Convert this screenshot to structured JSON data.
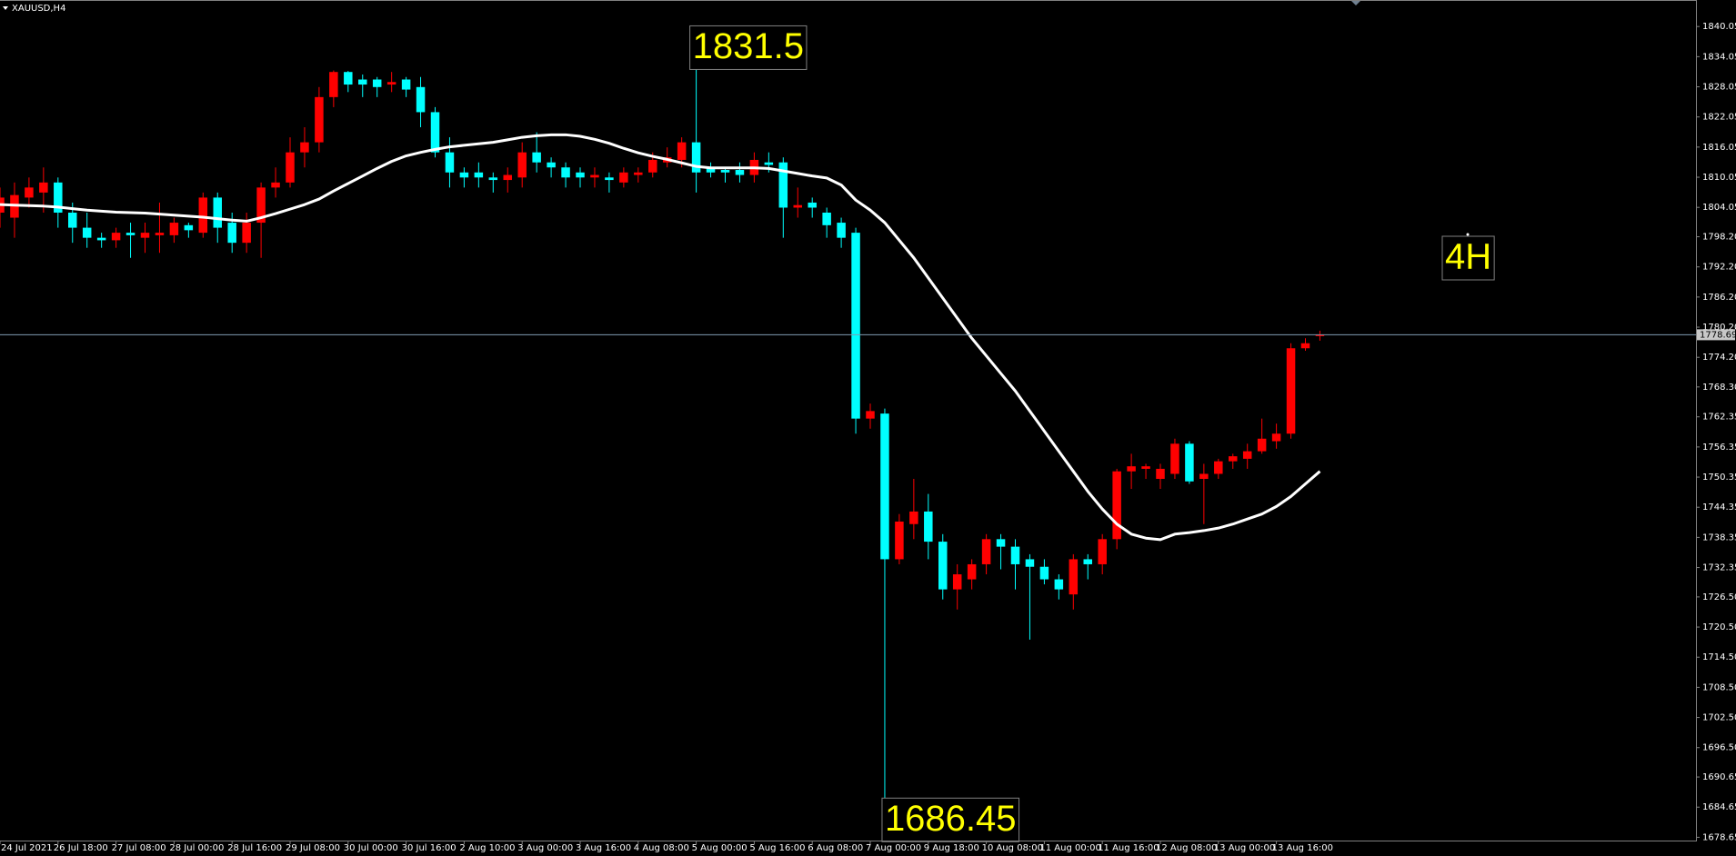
{
  "chart_data": {
    "type": "candlestick",
    "title": "XAUUSD,H4",
    "timeframe_label": "4H",
    "high_label": 1831.5,
    "low_label": 1686.45,
    "current_price": 1778.69,
    "up_color": "#ff0000",
    "down_color": "#00ffff",
    "current_price_color": "#7f9bb3",
    "ylim": [
      1678.0,
      1845.33
    ],
    "yticks": [
      1840.05,
      1834.05,
      1828.05,
      1822.05,
      1816.05,
      1810.05,
      1804.05,
      {
        "value": 1798.2,
        "label": "1798.20"
      },
      {
        "value": 1792.2,
        "label": "1792.20"
      },
      {
        "value": 1786.2,
        "label": "1786.20"
      },
      {
        "value": 1780.2,
        "label": "1780.20"
      },
      {
        "value": 1774.2,
        "label": "1774.20"
      },
      {
        "value": 1768.3,
        "label": "1768.30"
      },
      1762.35,
      1756.35,
      1750.35,
      1744.35,
      1738.35,
      1732.35,
      {
        "value": 1726.5,
        "label": "1726.50"
      },
      {
        "value": 1720.5,
        "label": "1720.50"
      },
      {
        "value": 1714.5,
        "label": "1714.50"
      },
      {
        "value": 1708.5,
        "label": "1708.50"
      },
      {
        "value": 1702.5,
        "label": "1702.50"
      },
      {
        "value": 1696.5,
        "label": "1696.50"
      },
      1690.65,
      1684.65,
      1678.65
    ],
    "categories": [
      "24 Jul 2021",
      null,
      null,
      null,
      "26 Jul 18:00",
      null,
      null,
      null,
      "27 Jul 08:00",
      null,
      null,
      null,
      "28 Jul 00:00",
      null,
      null,
      null,
      "28 Jul 16:00",
      null,
      null,
      null,
      "29 Jul 08:00",
      null,
      null,
      null,
      "30 Jul 00:00",
      null,
      null,
      null,
      "30 Jul 16:00",
      null,
      null,
      null,
      "2 Aug 10:00",
      null,
      null,
      null,
      "3 Aug 00:00",
      null,
      null,
      null,
      "3 Aug 16:00",
      null,
      null,
      null,
      "4 Aug 08:00",
      null,
      null,
      null,
      "5 Aug 00:00",
      null,
      null,
      null,
      "5 Aug 16:00",
      null,
      null,
      null,
      "6 Aug 08:00",
      null,
      null,
      null,
      "7 Aug 00:00",
      null,
      null,
      null,
      "9 Aug 18:00",
      null,
      null,
      null,
      "10 Aug 08:00",
      null,
      null,
      null,
      "11 Aug 00:00",
      null,
      null,
      null,
      "11 Aug 16:00",
      null,
      null,
      null,
      "12 Aug 08:00",
      null,
      null,
      null,
      "13 Aug 00:00",
      null,
      null,
      null,
      "13 Aug 16:00",
      null,
      null,
      null
    ],
    "open": [
      1803,
      1802,
      1806,
      1807,
      1809,
      1803,
      1800,
      1798,
      1797.5,
      1799,
      1798,
      1798.5,
      1798.5,
      1800.5,
      1799,
      1806,
      1801,
      1797,
      1801,
      1808,
      1809,
      1815,
      1817,
      1826,
      1831,
      1829.5,
      1829.5,
      1828.5,
      1829.5,
      1828,
      1823,
      1815,
      1811,
      1811,
      1810,
      1809.5,
      1810,
      1815,
      1813,
      1812,
      1811,
      1810,
      1810,
      1809,
      1810.5,
      1811,
      1813,
      1813.5,
      1817,
      1812,
      1811.5,
      1811.5,
      1810.5,
      1813,
      1813,
      1804,
      1805,
      1803,
      1801,
      1799,
      1762,
      1763,
      1734,
      1741,
      1743.5,
      1737.5,
      1728,
      1730,
      1733,
      1738,
      1736.5,
      1734,
      1732.5,
      1730,
      1727,
      1734,
      1733,
      1738,
      1751.5,
      1752,
      1750,
      1751,
      1757,
      1750,
      1751,
      1753.5,
      1754,
      1755.5,
      1757.5,
      1759,
      1776,
      1778.5
    ],
    "high": [
      1808,
      1809,
      1810,
      1812,
      1810,
      1805,
      1803,
      1799,
      1800,
      1801,
      1801,
      1805,
      1802,
      1801,
      1807,
      1807,
      1803,
      1803,
      1809,
      1812,
      1818,
      1820,
      1828,
      1831.3,
      1831.2,
      1830.5,
      1830,
      1831,
      1830,
      1830,
      1824,
      1818,
      1812,
      1813,
      1811,
      1812,
      1817,
      1819,
      1814,
      1813,
      1812,
      1812,
      1811,
      1812,
      1812,
      1815,
      1816,
      1818,
      1831.5,
      1813,
      1812,
      1813,
      1815,
      1815,
      1814,
      1808,
      1806,
      1804,
      1802,
      1800,
      1765,
      1764,
      1743,
      1750,
      1747,
      1739,
      1733,
      1734,
      1739,
      1739,
      1738,
      1735,
      1734,
      1731,
      1735,
      1735,
      1739,
      1752,
      1755,
      1753,
      1753,
      1758,
      1757.5,
      1753,
      1754,
      1755,
      1757,
      1762,
      1761,
      1777,
      1778,
      1779.5
    ],
    "low": [
      1800,
      1798,
      1804,
      1803,
      1800,
      1797,
      1796,
      1796,
      1796,
      1794,
      1795,
      1795,
      1797,
      1798,
      1798,
      1797,
      1795,
      1795,
      1794,
      1806,
      1808,
      1812,
      1815,
      1824,
      1827,
      1826,
      1826,
      1827,
      1826,
      1820,
      1814,
      1808,
      1808,
      1808,
      1807,
      1807,
      1808,
      1811,
      1810,
      1808,
      1808,
      1808,
      1807,
      1808,
      1809,
      1810,
      1812,
      1812,
      1807,
      1810,
      1809,
      1809,
      1809,
      1811,
      1798,
      1802,
      1802,
      1798,
      1796,
      1759,
      1760,
      1686.45,
      1733,
      1738,
      1734,
      1726,
      1724,
      1728,
      1731,
      1732,
      1728,
      1718,
      1729,
      1726,
      1724,
      1730,
      1731,
      1736,
      1748,
      1750,
      1748,
      1750,
      1749,
      1741,
      1750,
      1752,
      1752,
      1755,
      1756,
      1758,
      1775.5,
      1777.5
    ],
    "close": [
      1806,
      1806.5,
      1808,
      1809,
      1803,
      1800,
      1798,
      1797.5,
      1799,
      1798.5,
      1799,
      1799,
      1801,
      1799.5,
      1806,
      1800,
      1797,
      1801,
      1808,
      1809,
      1815,
      1817,
      1826,
      1831,
      1828.5,
      1828.5,
      1828,
      1829,
      1827.5,
      1823,
      1815,
      1811,
      1810,
      1810,
      1809.5,
      1810.5,
      1815,
      1813,
      1812,
      1810,
      1810,
      1810.5,
      1809.5,
      1811,
      1811,
      1813.5,
      1814,
      1817,
      1811,
      1811,
      1811,
      1810.5,
      1813.5,
      1812.5,
      1804,
      1804.5,
      1804,
      1800.5,
      1798,
      1762,
      1763.5,
      1734,
      1741.5,
      1743.5,
      1737.5,
      1728,
      1731,
      1733,
      1738,
      1736.5,
      1733,
      1732.5,
      1730,
      1728,
      1734,
      1733,
      1738,
      1751.5,
      1752.5,
      1752.5,
      1752,
      1757,
      1749.5,
      1751,
      1753.5,
      1754.5,
      1755.5,
      1758,
      1759,
      1776,
      1777,
      1778.69
    ],
    "moving_average": {
      "color": "#ffffff",
      "values": [
        1804.6,
        1804.5,
        1804.4,
        1804.3,
        1804.1,
        1803.8,
        1803.5,
        1803.3,
        1803.1,
        1803,
        1802.9,
        1802.7,
        1802.5,
        1802.3,
        1802.1,
        1801.8,
        1801.5,
        1801.3,
        1802,
        1802.8,
        1803.7,
        1804.6,
        1805.7,
        1807.3,
        1808.8,
        1810.3,
        1811.8,
        1813.2,
        1814.3,
        1815,
        1815.6,
        1816.1,
        1816.4,
        1816.7,
        1817,
        1817.5,
        1818,
        1818.3,
        1818.5,
        1818.5,
        1818.2,
        1817.6,
        1816.8,
        1815.8,
        1814.9,
        1814.2,
        1813.6,
        1812.9,
        1812.2,
        1811.9,
        1811.9,
        1811.9,
        1811.9,
        1811.8,
        1811.3,
        1810.8,
        1810.3,
        1809.9,
        1808.5,
        1805.5,
        1803.5,
        1801,
        1797.5,
        1794,
        1790,
        1786,
        1782,
        1778,
        1774.5,
        1771,
        1767.5,
        1763.5,
        1759.5,
        1755.5,
        1751.5,
        1747.5,
        1744,
        1741,
        1739,
        1738.2,
        1737.9,
        1739,
        1739.3,
        1739.7,
        1740.2,
        1741,
        1742,
        1743,
        1744.5,
        1746.5,
        1749,
        1751.5
      ]
    }
  }
}
